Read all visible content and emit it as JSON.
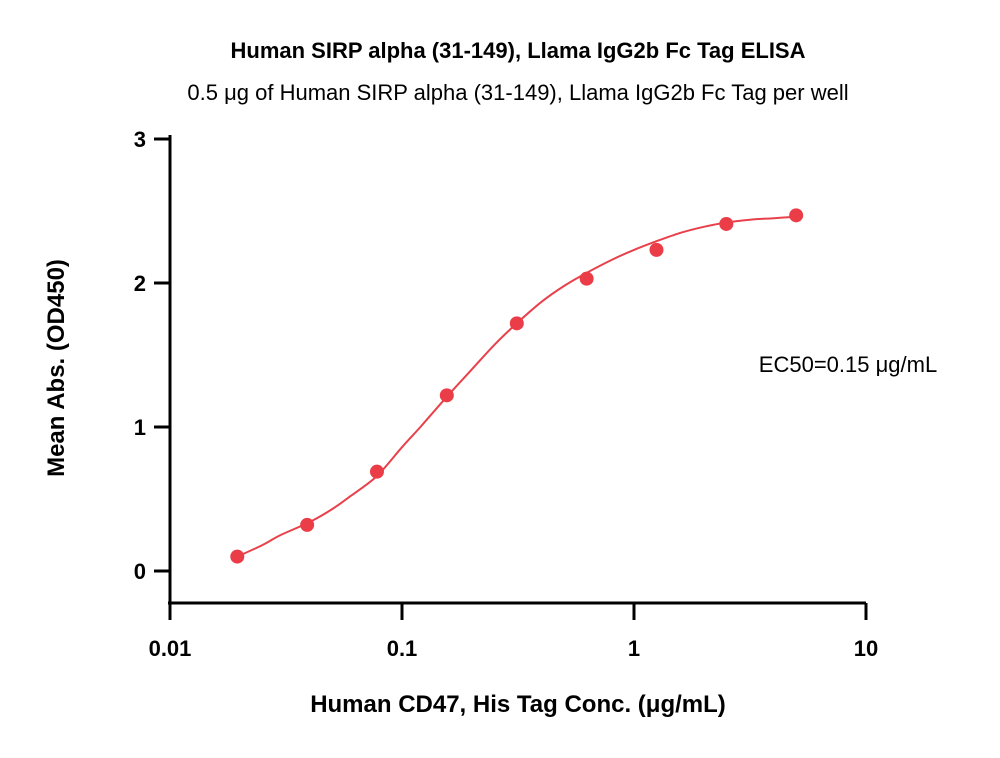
{
  "chart_data": {
    "type": "scatter",
    "title": "Human SIRP alpha (31-149), Llama IgG2b Fc Tag ELISA",
    "subtitle": "0.5 μg of Human SIRP alpha (31-149), Llama IgG2b Fc Tag per well",
    "xlabel": "Human CD47, His Tag Conc. (μg/mL)",
    "ylabel": "Mean Abs. (OD450)",
    "x_scale": "log",
    "xlim": [
      0.01,
      10
    ],
    "ylim": [
      0,
      3
    ],
    "x_ticks": [
      {
        "value": 0.01,
        "label": "0.01"
      },
      {
        "value": 0.1,
        "label": "0.1"
      },
      {
        "value": 1,
        "label": "1"
      },
      {
        "value": 10,
        "label": "10"
      }
    ],
    "y_ticks": [
      {
        "value": 0,
        "label": "0"
      },
      {
        "value": 1,
        "label": "1"
      },
      {
        "value": 2,
        "label": "2"
      },
      {
        "value": 3,
        "label": "3"
      }
    ],
    "grid": false,
    "series": [
      {
        "color": "#ea3d48",
        "x": [
          0.0195,
          0.039,
          0.078,
          0.156,
          0.3125,
          0.625,
          1.25,
          2.5,
          5
        ],
        "y": [
          0.1,
          0.32,
          0.69,
          1.22,
          1.72,
          2.03,
          2.23,
          2.41,
          2.47
        ]
      }
    ],
    "fit_curve": {
      "color": "#e8414b",
      "x": [
        0.0195,
        0.025,
        0.03,
        0.04,
        0.05,
        0.06,
        0.078,
        0.1,
        0.12,
        0.156,
        0.2,
        0.25,
        0.3125,
        0.4,
        0.5,
        0.625,
        0.8,
        1.0,
        1.25,
        1.6,
        2.0,
        2.5,
        3.2,
        4.0,
        5.0
      ],
      "y": [
        0.1,
        0.18,
        0.25,
        0.34,
        0.43,
        0.52,
        0.66,
        0.86,
        1.0,
        1.21,
        1.4,
        1.57,
        1.72,
        1.87,
        1.98,
        2.07,
        2.16,
        2.23,
        2.29,
        2.35,
        2.39,
        2.42,
        2.44,
        2.45,
        2.46
      ]
    },
    "annotation": "EC50=0.15 μg/mL"
  }
}
